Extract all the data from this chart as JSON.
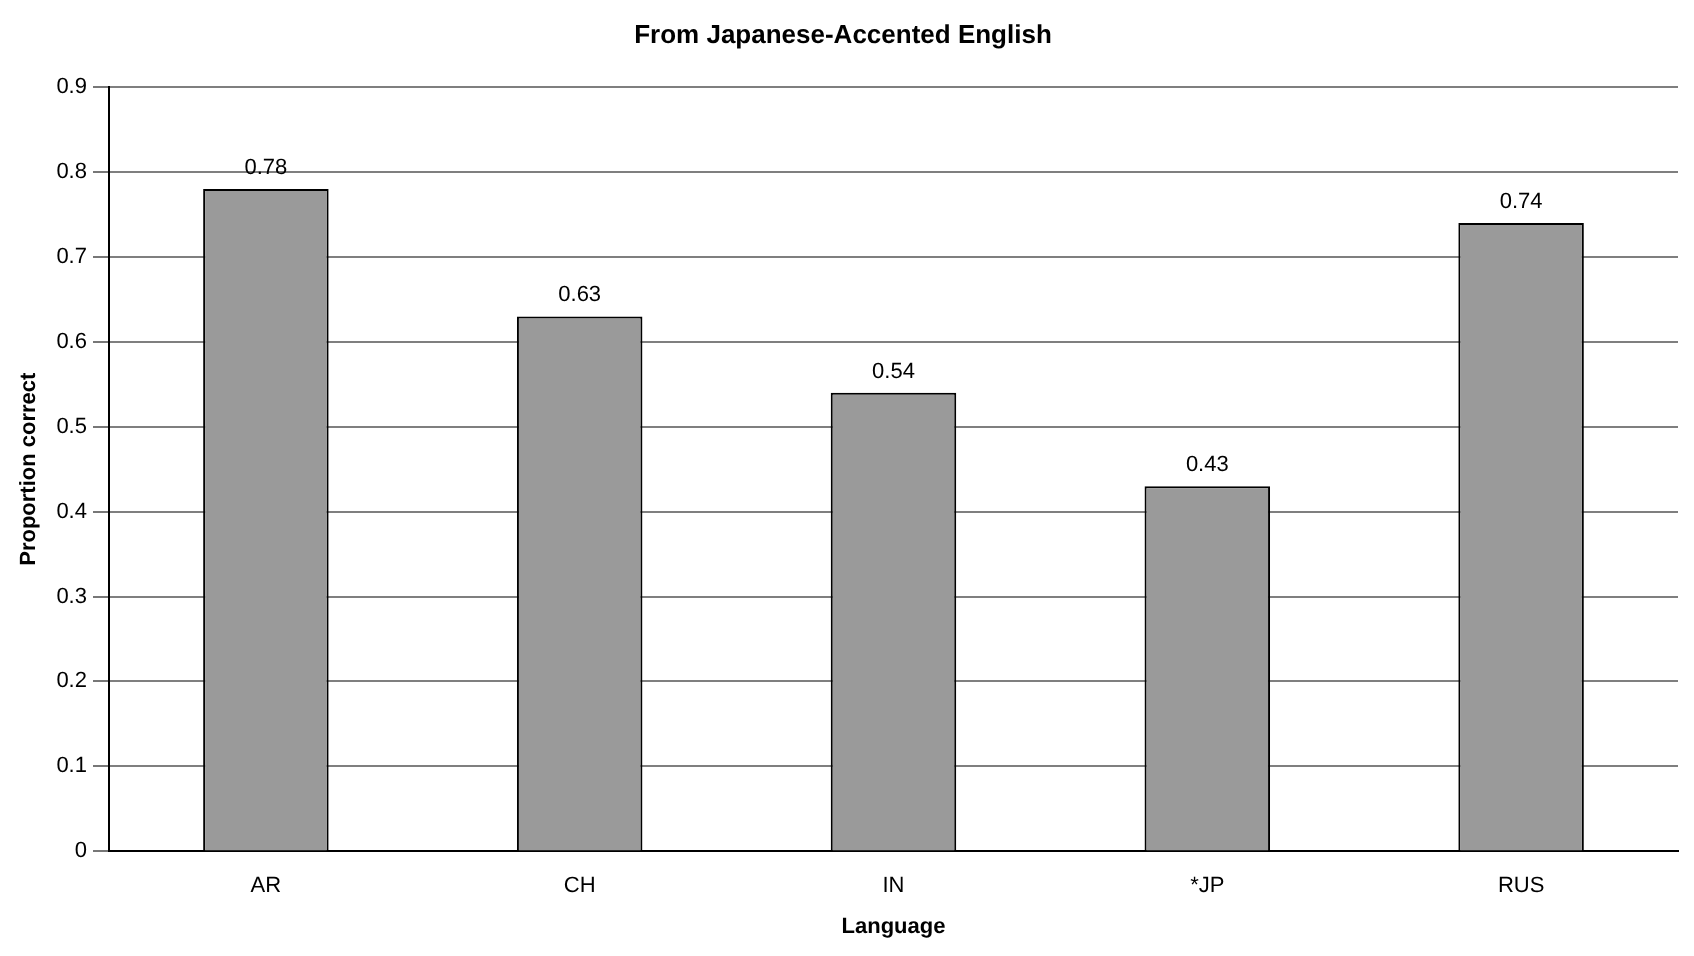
{
  "chart_data": {
    "type": "bar",
    "title": "From Japanese-Accented English",
    "xlabel": "Language",
    "ylabel": "Proportion correct",
    "categories": [
      "AR",
      "CH",
      "IN",
      "*JP",
      "RUS"
    ],
    "values": [
      0.78,
      0.63,
      0.54,
      0.43,
      0.74
    ],
    "color": "#9a9a9a",
    "ylim": [
      0,
      0.9
    ],
    "yticks": [
      0,
      0.1,
      0.2,
      0.3,
      0.4,
      0.5,
      0.6,
      0.7,
      0.8,
      0.9
    ],
    "grid": "y",
    "legend": false,
    "data_labels": true
  }
}
